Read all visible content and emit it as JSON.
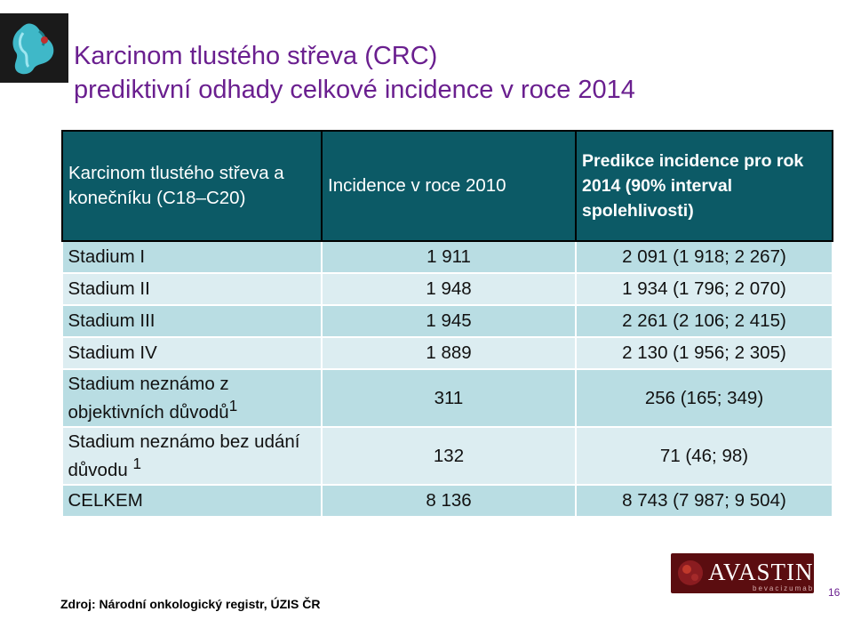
{
  "title": {
    "line1": "Karcinom tlustého střeva (CRC)",
    "line2": "prediktivní odhady celkové incidence v roce 2014"
  },
  "table": {
    "headers": {
      "col1": "Karcinom tlustého střeva a konečníku (C18–C20)",
      "col2": "Incidence v roce 2010",
      "col3": "Predikce incidence pro rok 2014 (90% interval spolehlivosti)"
    },
    "rows": [
      {
        "label": "Stadium I",
        "incidence": "1 911",
        "prediction": "2 091 (1 918; 2 267)"
      },
      {
        "label": "Stadium II",
        "incidence": "1 948",
        "prediction": "1 934 (1 796; 2 070)"
      },
      {
        "label": "Stadium III",
        "incidence": "1 945",
        "prediction": "2 261 (2 106; 2 415)"
      },
      {
        "label": "Stadium IV",
        "incidence": "1 889",
        "prediction": "2 130 (1 956; 2 305)"
      },
      {
        "label": "Stadium neznámo z objektivních důvodů",
        "sup": "1",
        "incidence": "311",
        "prediction": "256 (165; 349)"
      },
      {
        "label": "Stadium neznámo bez udání důvodu ",
        "sup": "1",
        "incidence": "132",
        "prediction": "71 (46; 98)"
      },
      {
        "label": "CELKEM",
        "incidence": "8 136",
        "prediction": "8 743 (7 987; 9 504)"
      }
    ]
  },
  "footer": {
    "source": "Zdroj: Národní onkologický registr, ÚZIS ČR"
  },
  "brand": {
    "name": "AVASTIN",
    "mark": "®",
    "sub": "bevacizumab"
  },
  "page_number": "16",
  "colors": {
    "title": "#6a1f8f",
    "header_bg": "#0c5a66",
    "row_dark": "#b9dde3",
    "row_light": "#dcedf1",
    "brand_bg": "#5b0d10"
  }
}
